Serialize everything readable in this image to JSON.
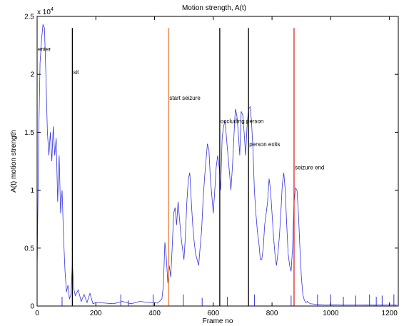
{
  "chart_data": {
    "type": "line",
    "title": "Motion strength, A(t)",
    "xlabel": "Frame no",
    "ylabel": "A(t) motion strength",
    "y_scale_label": "x 10",
    "y_scale_exponent": "4",
    "xlim": [
      0,
      1230
    ],
    "ylim": [
      0,
      25000
    ],
    "x_ticks": [
      0,
      200,
      400,
      600,
      800,
      1000,
      1200
    ],
    "y_ticks": [
      0,
      5000,
      10000,
      15000,
      20000,
      25000
    ],
    "y_tick_labels": [
      "0",
      "0.5",
      "1",
      "1.5",
      "2",
      "2.5"
    ],
    "grid": false,
    "series": [
      {
        "color": "#3333dd",
        "x": [
          0,
          5,
          10,
          15,
          20,
          25,
          30,
          35,
          40,
          45,
          50,
          55,
          60,
          65,
          70,
          75,
          80,
          85,
          90,
          95,
          100,
          105,
          110,
          115,
          120,
          125,
          130,
          140,
          150,
          160,
          170,
          180,
          190,
          200,
          230,
          260,
          290,
          320,
          350,
          380,
          410,
          425,
          430,
          435,
          440,
          445,
          450,
          455,
          460,
          465,
          470,
          475,
          480,
          485,
          490,
          495,
          500,
          505,
          510,
          515,
          520,
          525,
          530,
          535,
          540,
          545,
          550,
          555,
          560,
          565,
          570,
          575,
          580,
          585,
          590,
          595,
          600,
          605,
          610,
          615,
          620,
          625,
          630,
          635,
          640,
          645,
          650,
          655,
          660,
          665,
          670,
          675,
          680,
          685,
          690,
          695,
          700,
          705,
          710,
          715,
          720,
          725,
          730,
          735,
          740,
          745,
          750,
          755,
          760,
          765,
          770,
          775,
          780,
          785,
          790,
          795,
          800,
          805,
          810,
          815,
          820,
          825,
          830,
          835,
          840,
          845,
          850,
          855,
          860,
          865,
          870,
          875,
          880,
          885,
          890,
          895,
          900,
          905,
          910,
          915,
          920,
          930,
          950,
          980,
          1010,
          1050,
          1100,
          1150,
          1200,
          1225
        ],
        "y": [
          3000,
          14000,
          21000,
          23000,
          24300,
          24000,
          20000,
          15000,
          13000,
          15000,
          12500,
          15500,
          13000,
          14500,
          9000,
          13000,
          8000,
          10000,
          6000,
          3000,
          1200,
          1800,
          600,
          1000,
          3700,
          1500,
          900,
          1400,
          400,
          1000,
          300,
          1100,
          200,
          300,
          250,
          200,
          400,
          200,
          400,
          300,
          250,
          600,
          1800,
          5500,
          4200,
          2000,
          3500,
          2500,
          5000,
          8000,
          8500,
          7000,
          9000,
          7500,
          6000,
          5000,
          4000,
          6000,
          9000,
          11000,
          11500,
          9000,
          7000,
          5500,
          4500,
          4000,
          3500,
          5000,
          6500,
          9000,
          11000,
          12500,
          14000,
          13500,
          11000,
          9500,
          8000,
          10000,
          12000,
          13000,
          12000,
          10000,
          14500,
          15500,
          16000,
          14500,
          13000,
          11500,
          10000,
          12000,
          14500,
          17000,
          16500,
          15000,
          13000,
          16800,
          16500,
          15000,
          13000,
          15500,
          17000,
          17200,
          16000,
          13500,
          10000,
          8000,
          6500,
          5500,
          4000,
          4000,
          5000,
          7000,
          8000,
          9000,
          11000,
          10000,
          8000,
          6000,
          4500,
          3500,
          4500,
          6000,
          8000,
          10500,
          11500,
          10000,
          7000,
          4500,
          3500,
          3000,
          5000,
          9000,
          10200,
          10000,
          8000,
          5000,
          2500,
          1000,
          500,
          300,
          400,
          200,
          150,
          100,
          120,
          100,
          100,
          80,
          100,
          80
        ]
      }
    ],
    "spikes": {
      "x": [
        85,
        285,
        310,
        395,
        498,
        562,
        648,
        740,
        865,
        955,
        1000,
        1043,
        1085,
        1132,
        1155,
        1175,
        1215
      ],
      "y": [
        800,
        1000,
        500,
        1000,
        1000,
        700,
        800,
        1000,
        900,
        1000,
        1000,
        800,
        900,
        1000,
        800,
        900,
        1000
      ]
    },
    "markers": [
      {
        "x": 120,
        "color": "#000000",
        "label": "sit",
        "label_y": 20000
      },
      {
        "x": 448,
        "color": "#f08040",
        "label": "start seizure",
        "label_y": 17800
      },
      {
        "x": 622,
        "color": "#000000",
        "label": "occluding person",
        "label_y": 15800
      },
      {
        "x": 720,
        "color": "#000000",
        "label": "person exits",
        "label_y": 13800
      },
      {
        "x": 875,
        "color": "#e02020",
        "label": "seizure end",
        "label_y": 11800
      }
    ],
    "annotations": [
      {
        "x": 2,
        "y": 22000,
        "text": "enter"
      }
    ]
  }
}
